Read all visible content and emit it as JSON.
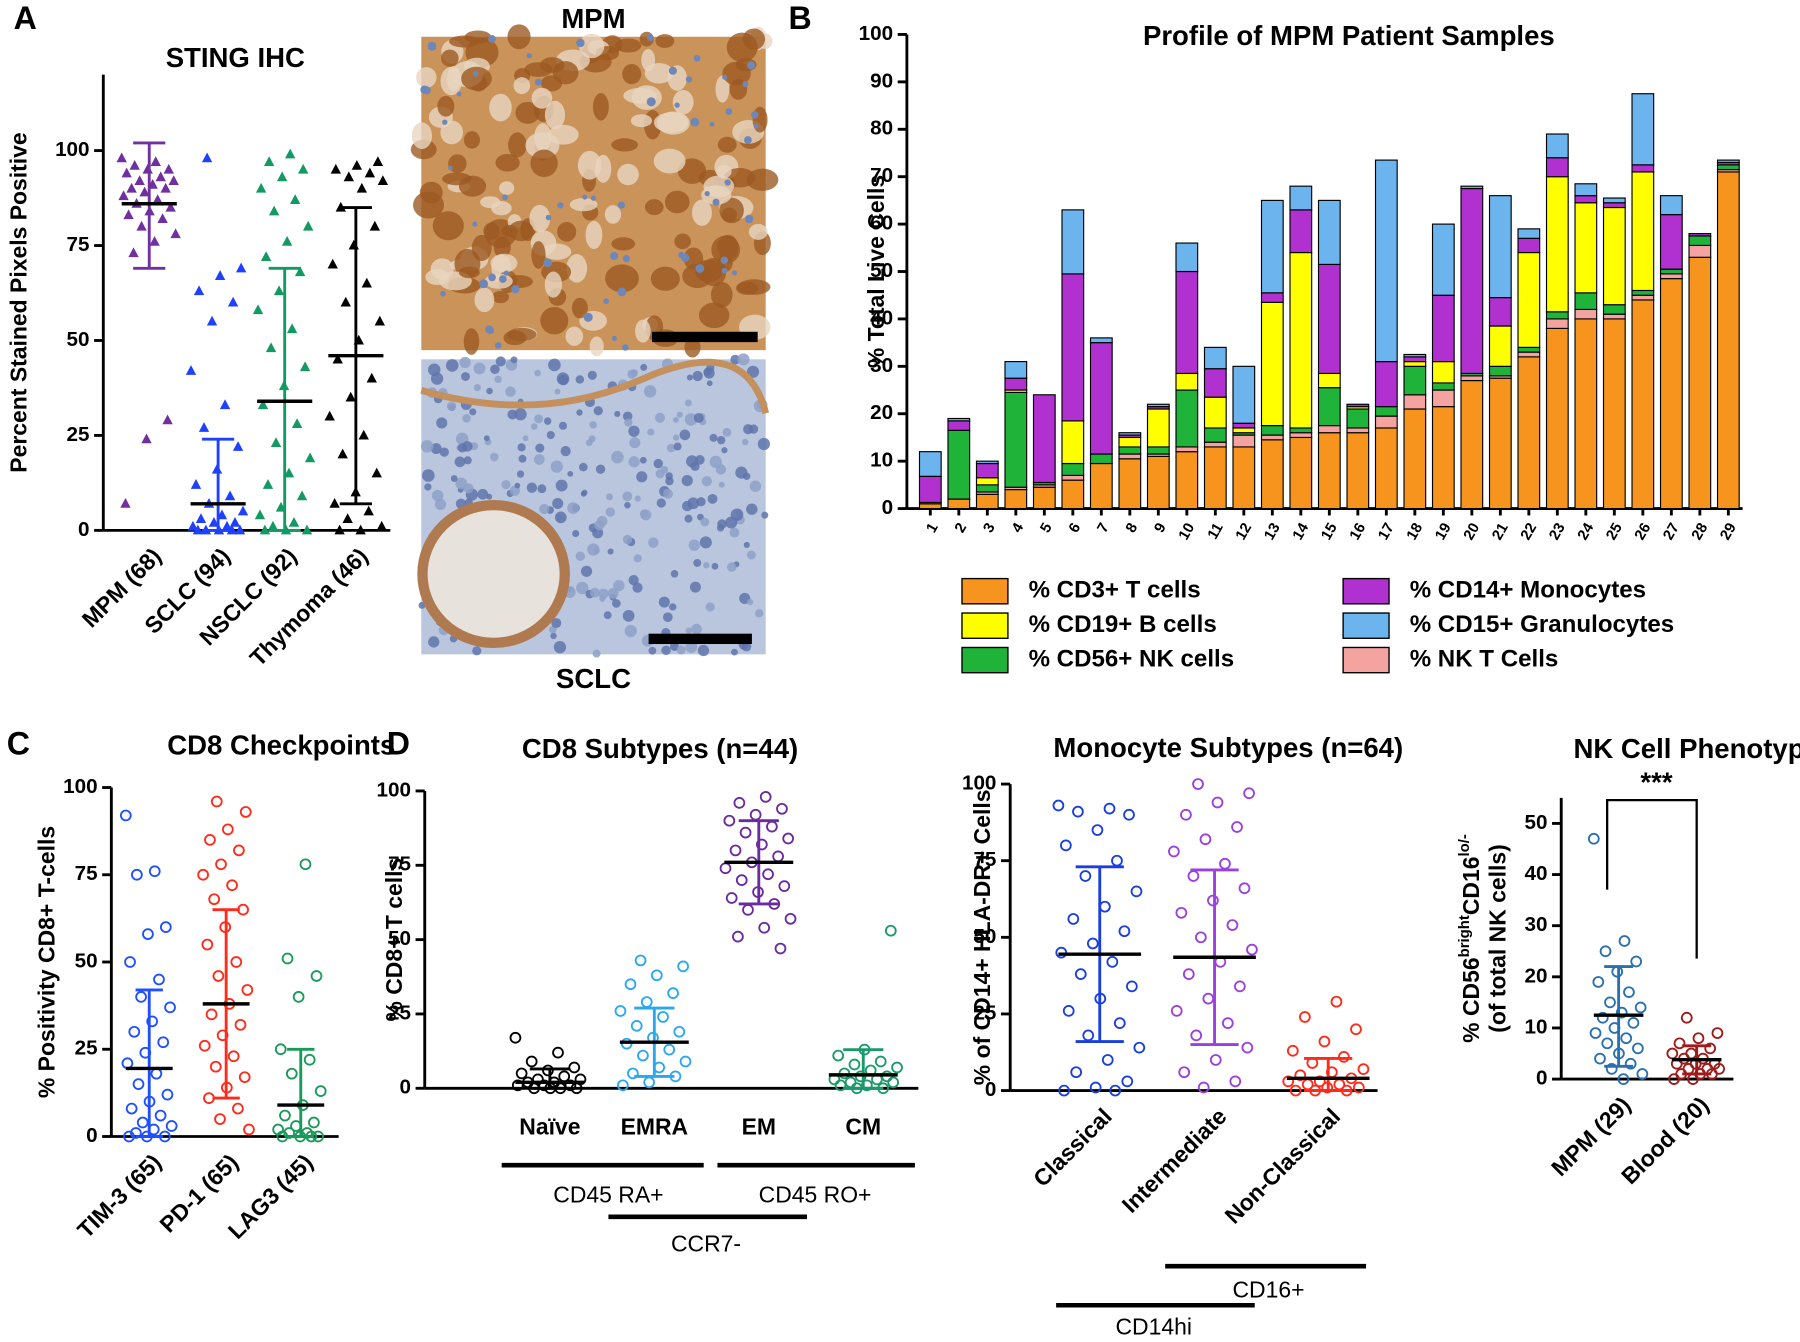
{
  "figure": {
    "panel_labels": [
      "A",
      "B",
      "C",
      "D"
    ],
    "images": [
      {
        "title": "MPM"
      },
      {
        "title": "SCLC"
      }
    ]
  },
  "chart_data": [
    {
      "type": "dot",
      "title": "STING IHC",
      "ylabel": "Percent Stained Pixels Positive",
      "marker": "triangle",
      "ylim": [
        0,
        120
      ],
      "yticks": [
        0,
        25,
        50,
        75,
        100
      ],
      "groups": [
        {
          "name": "MPM (68)",
          "color": "#7030a0",
          "center": 86,
          "lower": 69,
          "upper": 102,
          "values": [
            98,
            97,
            96,
            95,
            95,
            94,
            93,
            92,
            92,
            91,
            90,
            90,
            89,
            88,
            87,
            86,
            85,
            84,
            83,
            82,
            80,
            78,
            76,
            73,
            29,
            24,
            7
          ]
        },
        {
          "name": "SCLC (94)",
          "color": "#2040ff",
          "center": 7,
          "lower": 0,
          "upper": 24,
          "values": [
            98,
            69,
            67,
            63,
            60,
            55,
            42,
            33,
            27,
            22,
            16,
            12,
            9,
            7,
            5,
            4,
            3,
            2,
            2,
            1,
            1,
            0,
            0,
            0,
            0,
            0
          ]
        },
        {
          "name": "NSCLC (92)",
          "color": "#129a62",
          "center": 34,
          "lower": 0,
          "upper": 69,
          "values": [
            99,
            97,
            95,
            93,
            90,
            87,
            84,
            80,
            76,
            72,
            68,
            63,
            58,
            53,
            48,
            43,
            38,
            33,
            28,
            23,
            19,
            15,
            12,
            9,
            6,
            4,
            2,
            1,
            0,
            0,
            0
          ]
        },
        {
          "name": "Thymoma (46)",
          "color": "#000000",
          "center": 46,
          "lower": 7,
          "upper": 85,
          "values": [
            97,
            96,
            95,
            94,
            93,
            92,
            90,
            85,
            80,
            75,
            70,
            65,
            60,
            55,
            50,
            45,
            40,
            35,
            30,
            25,
            20,
            15,
            10,
            7,
            5,
            3,
            1,
            0,
            0
          ]
        }
      ]
    },
    {
      "type": "stacked_bar",
      "title": "Profile of MPM Patient Samples",
      "ylabel": "% Total Live Cells",
      "ylim": [
        0,
        100
      ],
      "yticks": [
        0,
        10,
        20,
        30,
        40,
        50,
        60,
        70,
        80,
        90,
        100
      ],
      "categories": [
        "1",
        "2",
        "3",
        "4",
        "5",
        "6",
        "7",
        "8",
        "9",
        "10",
        "11",
        "12",
        "13",
        "14",
        "15",
        "16",
        "17",
        "18",
        "19",
        "20",
        "21",
        "22",
        "23",
        "24",
        "25",
        "26",
        "27",
        "28",
        "29"
      ],
      "series": [
        {
          "name": "% CD3+ T cells",
          "color": "#f7941d",
          "values": [
            1,
            2,
            3,
            4,
            4.5,
            6,
            9.5,
            10.5,
            11,
            12,
            13,
            13,
            14.5,
            15,
            16,
            16,
            17,
            21,
            21.5,
            27,
            27.5,
            32,
            38,
            40,
            40,
            44,
            48.5,
            53,
            71
          ]
        },
        {
          "name": "% NK T Cells",
          "color": "#f4a3a0",
          "values": [
            0,
            0,
            0.5,
            0.5,
            0.5,
            1,
            0,
            1,
            0.5,
            1,
            1,
            2.5,
            1,
            1,
            1.5,
            1,
            2.5,
            3,
            3.5,
            1,
            0.5,
            1,
            2,
            2,
            1,
            1,
            1,
            2.5,
            0.5
          ]
        },
        {
          "name": "% CD56+ NK cells",
          "color": "#1fb33a",
          "values": [
            0.3,
            14.5,
            1.5,
            20,
            0.5,
            2.5,
            2,
            1.5,
            1.5,
            12,
            3,
            0.5,
            2,
            1,
            8,
            4,
            2,
            6,
            1.5,
            0.5,
            2,
            1,
            1.5,
            3.5,
            2,
            1,
            1,
            2,
            1
          ]
        },
        {
          "name": "% CD19+ B cells",
          "color": "#ffff00",
          "values": [
            0,
            0,
            1.5,
            0.5,
            0,
            9,
            0,
            2,
            8,
            3.5,
            6.5,
            1,
            26,
            37,
            3,
            0.5,
            0,
            1,
            4.5,
            0,
            8.5,
            20,
            28.5,
            19,
            20.5,
            25,
            0,
            0,
            0
          ]
        },
        {
          "name": "% CD14+ Monocytes",
          "color": "#b030d0",
          "values": [
            5.5,
            2,
            3,
            2.5,
            18.5,
            31,
            23.5,
            0.5,
            0.5,
            21.5,
            6,
            1,
            2,
            9,
            23,
            0.5,
            9.5,
            1,
            14,
            39,
            6,
            3,
            4,
            1.5,
            1,
            1.5,
            11.5,
            0.5,
            0.5
          ]
        },
        {
          "name": "% CD15+ Granulocytes",
          "color": "#6cb4ee",
          "values": [
            5.2,
            0.5,
            0.5,
            3.5,
            0,
            13.5,
            1,
            0.5,
            0.5,
            6,
            4.5,
            12,
            19.5,
            5,
            13.5,
            0,
            42.5,
            0.5,
            15,
            0.5,
            21.5,
            2,
            5,
            2.5,
            1,
            15,
            4,
            0,
            0.5
          ]
        }
      ]
    },
    {
      "type": "dot",
      "title": "CD8 Checkpoints",
      "ylabel": "% Positivity CD8+ T-cells",
      "marker": "circle",
      "ylim": [
        0,
        100
      ],
      "yticks": [
        0,
        25,
        50,
        75,
        100
      ],
      "groups": [
        {
          "name": "TIM-3 (65)",
          "color": "#1f4fff",
          "center": 19.5,
          "lower": 0,
          "upper": 42,
          "values": [
            92,
            76,
            75,
            60,
            58,
            50,
            45,
            40,
            37,
            33,
            30,
            27,
            24,
            21,
            18,
            15,
            12,
            10,
            8,
            6,
            4,
            3,
            2,
            1,
            0,
            0,
            0
          ]
        },
        {
          "name": "PD-1 (65)",
          "color": "#ff2a1a",
          "center": 38,
          "lower": 11,
          "upper": 65,
          "values": [
            96,
            93,
            88,
            85,
            82,
            78,
            75,
            72,
            68,
            65,
            60,
            55,
            50,
            46,
            42,
            38,
            35,
            32,
            29,
            26,
            23,
            20,
            17,
            14,
            11,
            8,
            5,
            2
          ]
        },
        {
          "name": "LAG3 (45)",
          "color": "#1a9a5a",
          "center": 9,
          "lower": 0,
          "upper": 25,
          "values": [
            78,
            51,
            46,
            40,
            25,
            22,
            18,
            13,
            9,
            6,
            4,
            3,
            2,
            1,
            1,
            0,
            0,
            0,
            0
          ]
        }
      ]
    },
    {
      "type": "dot",
      "title": "CD8 Subtypes (n=44)",
      "ylabel": "% CD8+ T cells",
      "marker": "circle",
      "ylim": [
        0,
        100
      ],
      "yticks": [
        0,
        25,
        50,
        75,
        100
      ],
      "annotations": [
        "CD45 RA+",
        "CD45 RO+",
        "CCR7-"
      ],
      "groups": [
        {
          "name": "Naïve",
          "color": "#000000",
          "center": 2,
          "lower": 0,
          "upper": 6.5,
          "values": [
            17,
            12,
            9,
            7,
            6,
            5,
            4,
            3,
            3,
            2,
            2,
            1,
            1,
            1,
            0,
            0,
            0,
            0
          ]
        },
        {
          "name": "EMRA",
          "color": "#29a8f0",
          "center": 15.5,
          "lower": 4,
          "upper": 27,
          "values": [
            43,
            41,
            38,
            35,
            32,
            29,
            26,
            24,
            21,
            19,
            17,
            15,
            13,
            11,
            9,
            7,
            5,
            4,
            2,
            1
          ]
        },
        {
          "name": "EM",
          "color": "#6a2aa0",
          "center": 76,
          "lower": 62,
          "upper": 90,
          "values": [
            98,
            96,
            94,
            92,
            90,
            88,
            86,
            84,
            82,
            80,
            78,
            76,
            74,
            72,
            70,
            68,
            66,
            64,
            62,
            60,
            57,
            54,
            51,
            47
          ]
        },
        {
          "name": "CM",
          "color": "#1a9a6a",
          "center": 4.5,
          "lower": 0,
          "upper": 13,
          "values": [
            53,
            13,
            11,
            9,
            8,
            7,
            6,
            5,
            4,
            4,
            3,
            3,
            2,
            2,
            1,
            1,
            0,
            0
          ]
        }
      ]
    },
    {
      "type": "dot",
      "title": "Monocyte Subtypes (n=64)",
      "ylabel": "% of CD14+ HLA-DR+ Cells",
      "marker": "circle",
      "ylim": [
        0,
        100
      ],
      "yticks": [
        0,
        25,
        50,
        75,
        100
      ],
      "annotations": [
        "CD16+",
        "CD14hi"
      ],
      "groups": [
        {
          "name": "Classical",
          "color": "#1a3fe0",
          "center": 44.5,
          "lower": 16,
          "upper": 73,
          "values": [
            93,
            92,
            91,
            90,
            85,
            80,
            75,
            70,
            65,
            60,
            56,
            52,
            48,
            45,
            42,
            38,
            34,
            30,
            26,
            22,
            18,
            14,
            10,
            6,
            3,
            1,
            0,
            0
          ]
        },
        {
          "name": "Intermediate",
          "color": "#9a40e0",
          "center": 43.5,
          "lower": 15,
          "upper": 72,
          "values": [
            100,
            97,
            94,
            90,
            86,
            82,
            78,
            74,
            70,
            66,
            62,
            58,
            54,
            50,
            46,
            42,
            38,
            34,
            30,
            26,
            22,
            18,
            14,
            10,
            6,
            3,
            1
          ]
        },
        {
          "name": "Non-Classical",
          "color": "#ff2a1a",
          "center": 4,
          "lower": 0,
          "upper": 10.5,
          "values": [
            29,
            24,
            20,
            16,
            13,
            11,
            9,
            7,
            6,
            5,
            4,
            3,
            3,
            2,
            2,
            1,
            1,
            0,
            0,
            0
          ]
        }
      ]
    },
    {
      "type": "dot",
      "title": "NK Cell Phenotype",
      "ylabel": [
        "% CD56",
        "bright",
        "CD16",
        "lo/-"
      ],
      "ylabel_sup": [
        false,
        true,
        false,
        true
      ],
      "ylabel_line2": "(of total NK cells)",
      "marker": "circle",
      "ylim": [
        0,
        55
      ],
      "yticks": [
        0,
        10,
        20,
        30,
        40,
        50
      ],
      "significance": "***",
      "groups": [
        {
          "name": "MPM (29)",
          "color": "#2a6fb0",
          "center": 12.5,
          "lower": 2.5,
          "upper": 22,
          "values": [
            47,
            27,
            25,
            23,
            21,
            19,
            17,
            15,
            14,
            13,
            12,
            11,
            10,
            9,
            8,
            7,
            6,
            5,
            4,
            3,
            2,
            1,
            0
          ]
        },
        {
          "name": "Blood (20)",
          "color": "#a01a1a",
          "center": 3.8,
          "lower": 1,
          "upper": 6.5,
          "values": [
            12,
            9,
            8,
            7,
            6,
            5,
            5,
            4,
            4,
            3,
            3,
            3,
            2,
            2,
            2,
            1,
            1,
            1,
            0,
            0
          ]
        }
      ]
    }
  ]
}
